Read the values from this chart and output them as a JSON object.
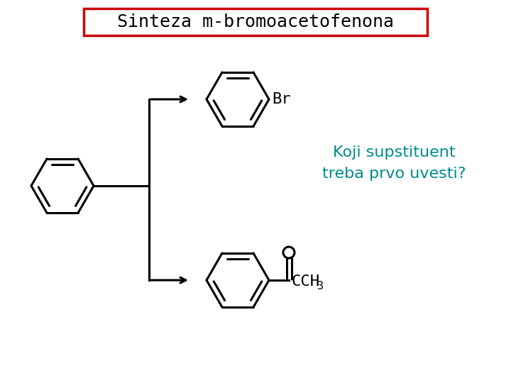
{
  "title": "Sinteza m-bromoacetofenona",
  "title_fontsize": 18,
  "title_box_color": "#cc0000",
  "title_bg": "#ffffff",
  "question_text": "Koji supstituent\ntreba prvo uvesti?",
  "question_color": "#008B8B",
  "question_fontsize": 16,
  "bg_color": "#ffffff",
  "structure_color": "#000000",
  "br_label": "Br",
  "oxygen_label": "O"
}
